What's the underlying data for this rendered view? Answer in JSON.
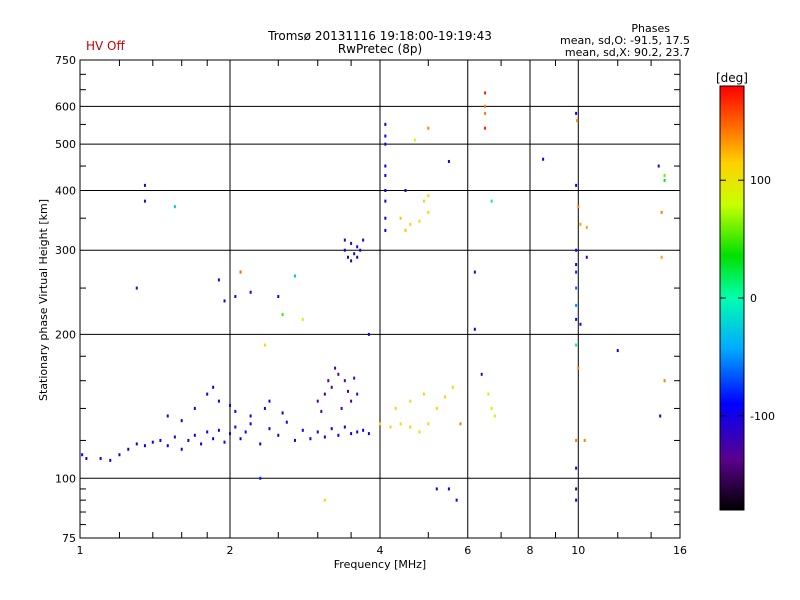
{
  "status_label": "HV Off",
  "phase_box": {
    "title": "Phases",
    "line1": "mean, sd,O: -91.5, 17.5",
    "line2": "mean, sd,X:  90.2, 23.7"
  },
  "colorbar": {
    "unit_label": "[deg]",
    "ticks": [
      100,
      0,
      -100
    ],
    "range": [
      -180,
      180
    ]
  },
  "chart_data": {
    "type": "scatter",
    "title": "Tromsø 20131116 19:18:00-19:19:43",
    "subtitle": "RwPretec (8p)",
    "xlabel": "Frequency [MHz]",
    "ylabel": "Stationary phase Virtual Height [km]",
    "xscale": "log",
    "yscale": "log",
    "xlim": [
      1,
      16
    ],
    "ylim": [
      75,
      750
    ],
    "x_ticks": [
      1,
      2,
      4,
      6,
      8,
      10,
      16
    ],
    "y_ticks": [
      75,
      100,
      200,
      300,
      400,
      500,
      600,
      750
    ],
    "grid": true,
    "colormap": "rainbow (black-purple-blue-cyan-green-yellow-red)",
    "points": [
      [
        1.01,
        112,
        -95
      ],
      [
        1.03,
        110,
        -95
      ],
      [
        1.1,
        110,
        -95
      ],
      [
        1.15,
        109,
        -95
      ],
      [
        1.2,
        112,
        -95
      ],
      [
        1.25,
        115,
        -95
      ],
      [
        1.3,
        118,
        -95
      ],
      [
        1.35,
        117,
        -95
      ],
      [
        1.4,
        119,
        -95
      ],
      [
        1.45,
        120,
        -95
      ],
      [
        1.5,
        117,
        -95
      ],
      [
        1.55,
        122,
        -95
      ],
      [
        1.6,
        115,
        -95
      ],
      [
        1.65,
        120,
        -95
      ],
      [
        1.7,
        123,
        -95
      ],
      [
        1.75,
        118,
        -95
      ],
      [
        1.8,
        125,
        -95
      ],
      [
        1.85,
        121,
        -95
      ],
      [
        1.9,
        126,
        -95
      ],
      [
        1.95,
        119,
        -95
      ],
      [
        2.0,
        124,
        -95
      ],
      [
        2.05,
        128,
        -95
      ],
      [
        2.1,
        121,
        -95
      ],
      [
        2.15,
        125,
        -95
      ],
      [
        2.2,
        130,
        -95
      ],
      [
        2.3,
        118,
        -95
      ],
      [
        2.4,
        127,
        -95
      ],
      [
        2.5,
        123,
        -95
      ],
      [
        2.6,
        131,
        -95
      ],
      [
        2.7,
        120,
        -95
      ],
      [
        2.8,
        126,
        -95
      ],
      [
        2.9,
        121,
        -95
      ],
      [
        3.0,
        125,
        -95
      ],
      [
        3.1,
        122,
        -95
      ],
      [
        3.2,
        127,
        -95
      ],
      [
        3.3,
        123,
        -95
      ],
      [
        3.4,
        128,
        -95
      ],
      [
        3.5,
        124,
        -95
      ],
      [
        3.6,
        125,
        -95
      ],
      [
        3.7,
        126,
        -95
      ],
      [
        3.8,
        124,
        -95
      ],
      [
        1.7,
        140,
        -95
      ],
      [
        1.8,
        150,
        -95
      ],
      [
        1.9,
        145,
        -95
      ],
      [
        2.0,
        142,
        -95
      ],
      [
        2.2,
        135,
        -95
      ],
      [
        2.4,
        145,
        -95
      ],
      [
        1.5,
        135,
        -95
      ],
      [
        1.6,
        132,
        -95
      ],
      [
        1.85,
        155,
        -95
      ],
      [
        2.05,
        138,
        -95
      ],
      [
        2.35,
        140,
        -95
      ],
      [
        2.55,
        137,
        -95
      ],
      [
        3.0,
        145,
        -130
      ],
      [
        3.1,
        150,
        -130
      ],
      [
        3.2,
        155,
        -130
      ],
      [
        3.3,
        165,
        -130
      ],
      [
        3.4,
        160,
        -130
      ],
      [
        3.5,
        145,
        -130
      ],
      [
        3.6,
        150,
        -130
      ],
      [
        3.15,
        160,
        -130
      ],
      [
        3.35,
        140,
        -130
      ],
      [
        3.05,
        138,
        -130
      ],
      [
        3.25,
        170,
        -130
      ],
      [
        3.45,
        152,
        -130
      ],
      [
        3.55,
        162,
        -130
      ],
      [
        3.4,
        300,
        -110
      ],
      [
        3.45,
        290,
        -110
      ],
      [
        3.5,
        310,
        -110
      ],
      [
        3.55,
        295,
        -110
      ],
      [
        3.6,
        305,
        -110
      ],
      [
        3.65,
        300,
        -110
      ],
      [
        3.7,
        315,
        -110
      ],
      [
        3.5,
        285,
        -110
      ],
      [
        3.4,
        315,
        -110
      ],
      [
        3.6,
        290,
        -110
      ],
      [
        4.0,
        130,
        110
      ],
      [
        4.2,
        128,
        110
      ],
      [
        4.4,
        130,
        110
      ],
      [
        4.6,
        128,
        110
      ],
      [
        4.8,
        125,
        110
      ],
      [
        5.0,
        130,
        110
      ],
      [
        4.3,
        140,
        110
      ],
      [
        4.6,
        145,
        110
      ],
      [
        4.9,
        150,
        110
      ],
      [
        5.2,
        140,
        110
      ],
      [
        5.4,
        148,
        110
      ],
      [
        4.1,
        350,
        -95
      ],
      [
        4.1,
        400,
        -95
      ],
      [
        4.1,
        450,
        -95
      ],
      [
        4.1,
        500,
        -95
      ],
      [
        4.1,
        550,
        -95
      ],
      [
        4.1,
        330,
        -95
      ],
      [
        4.1,
        380,
        -95
      ],
      [
        4.1,
        430,
        -95
      ],
      [
        4.1,
        520,
        -95
      ],
      [
        4.6,
        340,
        110
      ],
      [
        4.8,
        345,
        110
      ],
      [
        5.0,
        360,
        110
      ],
      [
        4.9,
        380,
        110
      ],
      [
        5.0,
        390,
        110
      ],
      [
        4.4,
        350,
        120
      ],
      [
        4.5,
        330,
        120
      ],
      [
        1.35,
        380,
        -120
      ],
      [
        1.35,
        410,
        -110
      ],
      [
        1.3,
        250,
        -130
      ],
      [
        1.55,
        370,
        -30
      ],
      [
        1.9,
        260,
        -100
      ],
      [
        1.95,
        235,
        -100
      ],
      [
        2.05,
        240,
        -100
      ],
      [
        2.2,
        245,
        -100
      ],
      [
        2.5,
        240,
        -100
      ],
      [
        2.7,
        265,
        -30
      ],
      [
        2.1,
        270,
        150
      ],
      [
        2.35,
        190,
        110
      ],
      [
        2.55,
        220,
        50
      ],
      [
        2.8,
        215,
        90
      ],
      [
        4.5,
        400,
        -110
      ],
      [
        5.0,
        540,
        140
      ],
      [
        4.7,
        510,
        80
      ],
      [
        5.5,
        460,
        -100
      ],
      [
        6.5,
        640,
        170
      ],
      [
        6.5,
        600,
        140
      ],
      [
        6.5,
        580,
        140
      ],
      [
        6.5,
        540,
        170
      ],
      [
        6.2,
        270,
        -100
      ],
      [
        6.2,
        205,
        -100
      ],
      [
        6.7,
        380,
        -10
      ],
      [
        6.4,
        165,
        -130
      ],
      [
        6.6,
        150,
        90
      ],
      [
        6.7,
        140,
        90
      ],
      [
        6.8,
        135,
        90
      ],
      [
        8.5,
        465,
        -100
      ],
      [
        9.9,
        120,
        140
      ],
      [
        10.0,
        170,
        140
      ],
      [
        10.3,
        120,
        140
      ],
      [
        9.9,
        580,
        -100
      ],
      [
        9.9,
        410,
        -100
      ],
      [
        9.9,
        300,
        -100
      ],
      [
        9.9,
        280,
        -100
      ],
      [
        9.9,
        270,
        -80
      ],
      [
        9.9,
        250,
        -60
      ],
      [
        9.9,
        230,
        -50
      ],
      [
        9.9,
        215,
        -100
      ],
      [
        10.1,
        210,
        -100
      ],
      [
        9.9,
        190,
        -10
      ],
      [
        9.95,
        560,
        140
      ],
      [
        10.0,
        370,
        140
      ],
      [
        10.1,
        340,
        130
      ],
      [
        10.4,
        335,
        130
      ],
      [
        9.9,
        95,
        -150
      ],
      [
        9.9,
        90,
        -100
      ],
      [
        9.9,
        105,
        -100
      ],
      [
        10.4,
        290,
        -120
      ],
      [
        12.0,
        185,
        -100
      ],
      [
        14.5,
        450,
        -100
      ],
      [
        14.9,
        430,
        60
      ],
      [
        14.9,
        420,
        30
      ],
      [
        14.7,
        290,
        130
      ],
      [
        14.7,
        360,
        140
      ],
      [
        14.9,
        160,
        140
      ],
      [
        14.6,
        135,
        -100
      ],
      [
        5.5,
        95,
        -100
      ],
      [
        5.7,
        90,
        -100
      ],
      [
        5.2,
        95,
        -100
      ],
      [
        5.6,
        155,
        110
      ],
      [
        5.8,
        130,
        140
      ],
      [
        3.1,
        90,
        110
      ],
      [
        2.3,
        100,
        -80
      ],
      [
        3.8,
        200,
        -100
      ]
    ]
  }
}
